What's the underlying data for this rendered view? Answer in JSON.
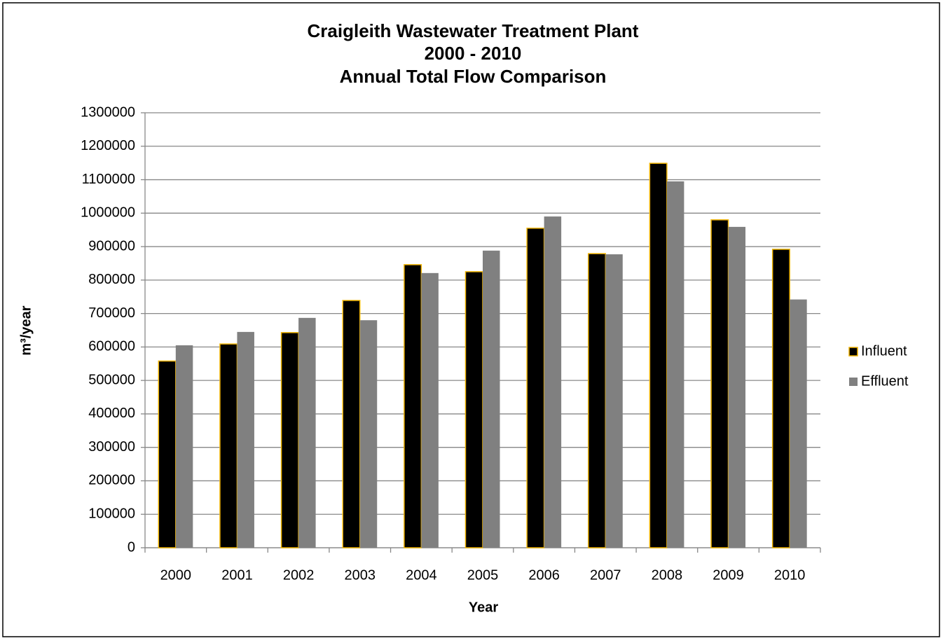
{
  "chart_data": {
    "type": "bar",
    "title": [
      "Craigleith Wastewater Treatment Plant",
      "2000 - 2010",
      "Annual Total Flow Comparison"
    ],
    "x_label": "Year",
    "y_label": "m³/year",
    "categories": [
      "2000",
      "2001",
      "2002",
      "2003",
      "2004",
      "2005",
      "2006",
      "2007",
      "2008",
      "2009",
      "2010"
    ],
    "series": [
      {
        "name": "Influent",
        "color": "#000000",
        "edge_color": "#f0b400",
        "values": [
          558000,
          609000,
          643000,
          739000,
          846000,
          825000,
          955000,
          879000,
          1149000,
          980000,
          892000
        ]
      },
      {
        "name": "Effluent",
        "color": "#808080",
        "values": [
          605000,
          645000,
          687000,
          680000,
          821000,
          888000,
          990000,
          877000,
          1095000,
          959000,
          742000
        ]
      }
    ],
    "ylim": [
      0,
      1300000
    ],
    "yticks": [
      0,
      100000,
      200000,
      300000,
      400000,
      500000,
      600000,
      700000,
      800000,
      900000,
      1000000,
      1100000,
      1200000,
      1300000
    ],
    "grid": true,
    "legend": "right"
  }
}
